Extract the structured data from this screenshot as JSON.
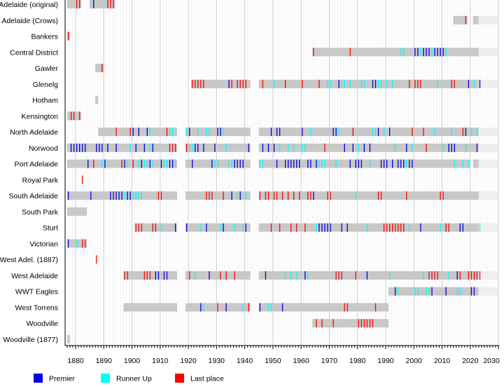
{
  "chart_data": {
    "type": "timeline",
    "xlim": [
      1877,
      2030
    ],
    "x_ticks": [
      1880,
      1890,
      1900,
      1910,
      1920,
      1930,
      1940,
      1950,
      1960,
      1970,
      1980,
      1990,
      2000,
      2010,
      2020,
      2030
    ],
    "grid": "vertical, yearly minor and decade major",
    "legend_placement": "bottom-left",
    "legend": [
      {
        "key": "premier",
        "label": "Premier",
        "color": "#0000e0"
      },
      {
        "key": "runner_up",
        "label": "Runner Up",
        "color": "#00ffff"
      },
      {
        "key": "last",
        "label": "Last place",
        "color": "#ff0000"
      }
    ],
    "colors": {
      "active": "#c8c8c8",
      "ongoing": "#eeeeee"
    },
    "clubs": [
      {
        "name": "Adelaide (original)",
        "spans": [
          [
            1877,
            1881
          ],
          [
            1885,
            1893
          ]
        ],
        "ongoing": [],
        "premier": [
          1886
        ],
        "runner_up": [],
        "last": [
          1880,
          1881,
          1891,
          1892,
          1893
        ]
      },
      {
        "name": "Adelaide (Crows)",
        "spans": [
          [
            2014,
            2018
          ],
          [
            2021,
            2022
          ]
        ],
        "ongoing": [
          2023,
          2029
        ],
        "premier": [],
        "runner_up": [],
        "last": [
          2018
        ]
      },
      {
        "name": "Bankers",
        "spans": [
          [
            1877,
            1877
          ]
        ],
        "ongoing": [],
        "premier": [],
        "runner_up": [],
        "last": [
          1877
        ]
      },
      {
        "name": "Central District",
        "spans": [
          [
            1964,
            2022
          ]
        ],
        "ongoing": [
          2023,
          2029
        ],
        "premier": [
          2000,
          2001,
          2003,
          2004,
          2005,
          2007,
          2008,
          2009,
          2010
        ],
        "runner_up": [
          1995,
          1996,
          2002,
          2006,
          2011
        ],
        "last": [
          1964,
          1977
        ]
      },
      {
        "name": "Gawler",
        "spans": [
          [
            1887,
            1889
          ]
        ],
        "ongoing": [],
        "premier": [],
        "runner_up": [],
        "last": [
          1889
        ]
      },
      {
        "name": "Glenelg",
        "spans": [
          [
            1921,
            1941
          ],
          [
            1945,
            2022
          ]
        ],
        "ongoing": [
          2023,
          2029
        ],
        "premier": [
          1934,
          1973,
          1985,
          1986,
          2019,
          2023
        ],
        "runner_up": [
          1950,
          1969,
          1970,
          1974,
          1975,
          1977,
          1981,
          1982,
          1987,
          1988,
          1990,
          1992,
          2008,
          2021
        ],
        "last": [
          1921,
          1922,
          1923,
          1924,
          1925,
          1935,
          1937,
          1938,
          1939,
          1940,
          1946,
          1954,
          1960,
          1966,
          1998,
          2000,
          2001,
          2002,
          2013,
          2014
        ]
      },
      {
        "name": "Hotham",
        "spans": [
          [
            1887,
            1887
          ]
        ],
        "ongoing": [],
        "premier": [],
        "runner_up": [],
        "last": []
      },
      {
        "name": "Kensington",
        "spans": [
          [
            1877,
            1881
          ]
        ],
        "ongoing": [],
        "premier": [],
        "runner_up": [],
        "last": [
          1878,
          1879,
          1881
        ]
      },
      {
        "name": "North Adelaide",
        "spans": [
          [
            1888,
            1915
          ],
          [
            1919,
            1941
          ],
          [
            1945,
            2022
          ]
        ],
        "ongoing": [
          2023,
          2029
        ],
        "premier": [
          1900,
          1902,
          1905,
          1920,
          1930,
          1931,
          1949,
          1951,
          1952,
          1960,
          1971,
          1972,
          1987,
          1991,
          2018
        ],
        "runner_up": [
          1906,
          1913,
          1914,
          1919,
          1923,
          1926,
          1927,
          1932,
          1963,
          1973,
          1985,
          1986,
          1989,
          2007,
          2013,
          2020,
          2022
        ],
        "last": [
          1894,
          1899,
          1912,
          1978,
          1999,
          2003,
          2017
        ]
      },
      {
        "name": "Norwood",
        "spans": [
          [
            1877,
            1915
          ],
          [
            1919,
            1941
          ],
          [
            1945,
            2022
          ]
        ],
        "ongoing": [
          2023,
          2029
        ],
        "premier": [
          1878,
          1879,
          1880,
          1881,
          1882,
          1883,
          1887,
          1888,
          1889,
          1891,
          1894,
          1901,
          1904,
          1907,
          1922,
          1923,
          1925,
          1929,
          1941,
          1946,
          1948,
          1950,
          1975,
          1978,
          1982,
          1984,
          1997,
          2012,
          2013,
          2014,
          2022
        ],
        "runner_up": [
          1899,
          1906,
          1920,
          1921,
          1933,
          1952,
          1955,
          1957,
          1960,
          1961,
          1980,
          1993,
          1999,
          2010,
          2018
        ],
        "last": [
          1913,
          1914,
          1915,
          1919,
          1968,
          2004
        ]
      },
      {
        "name": "Port Adelaide",
        "spans": [
          [
            1877,
            1915
          ],
          [
            1919,
            1941
          ],
          [
            1945,
            2019
          ],
          [
            2021,
            2022
          ]
        ],
        "ongoing": [
          2023,
          2029
        ],
        "premier": [
          1884,
          1890,
          1897,
          1903,
          1906,
          1910,
          1913,
          1914,
          1921,
          1928,
          1936,
          1937,
          1938,
          1939,
          1951,
          1954,
          1955,
          1956,
          1957,
          1958,
          1959,
          1962,
          1963,
          1965,
          1977,
          1979,
          1980,
          1981,
          1988,
          1989,
          1990,
          1992,
          1994,
          1995,
          1996,
          1998,
          1999
        ],
        "runner_up": [
          1889,
          1898,
          1900,
          1902,
          1904,
          1905,
          1907,
          1911,
          1912,
          1915,
          1929,
          1930,
          1934,
          1935,
          1945,
          1946,
          1966,
          1967,
          1968,
          1972,
          1984,
          1997,
          2014,
          2017,
          2019
        ],
        "last": [
          1886,
          1896,
          1900
        ]
      },
      {
        "name": "Royal Park",
        "spans": [],
        "ongoing": [],
        "premier": [],
        "runner_up": [],
        "last": [
          1882
        ]
      },
      {
        "name": "South Adelaide",
        "spans": [
          [
            1877,
            1915
          ],
          [
            1919,
            1941
          ],
          [
            1945,
            2022
          ]
        ],
        "ongoing": [
          2023,
          2029
        ],
        "premier": [
          1877,
          1885,
          1892,
          1893,
          1894,
          1895,
          1896,
          1898,
          1899,
          1935,
          1938,
          1964
        ],
        "runner_up": [
          1897,
          1900,
          1901,
          1902,
          1903,
          1937,
          1940,
          1979
        ],
        "last": [
          1909,
          1910,
          1926,
          1927,
          1928,
          1932,
          1945,
          1947,
          1948,
          1950,
          1951,
          1953,
          1955,
          1957,
          1959,
          1962,
          1963,
          1969,
          1970,
          1987,
          1988,
          1997,
          2009,
          2010
        ]
      },
      {
        "name": "South Park",
        "spans": [
          [
            1877,
            1883
          ]
        ],
        "ongoing": [],
        "premier": [],
        "runner_up": [],
        "last": []
      },
      {
        "name": "Sturt",
        "spans": [
          [
            1901,
            1915
          ],
          [
            1919,
            1941
          ],
          [
            1945,
            2022
          ]
        ],
        "ongoing": [
          2023,
          2029
        ],
        "premier": [
          1915,
          1919,
          1926,
          1932,
          1940,
          1966,
          1967,
          1968,
          1969,
          1970,
          1974,
          1976,
          2002,
          2016,
          2017
        ],
        "runner_up": [
          1910,
          1924,
          1931,
          1936,
          1939,
          1965,
          1983,
          1998,
          2009,
          2023
        ],
        "last": [
          1901,
          1902,
          1903,
          1907,
          1908,
          1949,
          1952,
          1956,
          1958,
          1961,
          1989,
          1990,
          1991,
          1992,
          1993,
          1994,
          1995,
          1996,
          2011,
          2012
        ]
      },
      {
        "name": "Victorian",
        "spans": [
          [
            1877,
            1883
          ]
        ],
        "ongoing": [],
        "premier": [
          1877
        ],
        "runner_up": [
          1880
        ],
        "last": [
          1882,
          1883
        ]
      },
      {
        "name": "West Adel. (1887)",
        "spans": [],
        "ongoing": [],
        "premier": [],
        "runner_up": [],
        "last": [
          1887
        ]
      },
      {
        "name": "West Adelaide",
        "spans": [
          [
            1897,
            1915
          ],
          [
            1919,
            1941
          ],
          [
            1945,
            2022
          ]
        ],
        "ongoing": [
          2023,
          2029
        ],
        "premier": [
          1908,
          1909,
          1911,
          1912,
          1927,
          1947,
          1961,
          1983,
          2015
        ],
        "runner_up": [
          1922,
          1954,
          1956,
          1958,
          1962,
          1991,
          2003,
          2012
        ],
        "last": [
          1897,
          1898,
          1904,
          1905,
          1906,
          1920,
          1931,
          1933,
          1936,
          1972,
          1973,
          1974,
          1979,
          2005,
          2006,
          2007,
          2008,
          2016,
          2019,
          2020,
          2021,
          2022,
          2023
        ]
      },
      {
        "name": "WWT Eagles",
        "spans": [
          [
            1991,
            2022
          ]
        ],
        "ongoing": [
          2023,
          2029
        ],
        "premier": [
          1993,
          2006,
          2011,
          2020,
          2021
        ],
        "runner_up": [
          1994,
          2000,
          2001,
          2004,
          2005,
          2015,
          2016
        ],
        "last": []
      },
      {
        "name": "West Torrens",
        "spans": [
          [
            1897,
            1915
          ],
          [
            1919,
            1941
          ],
          [
            1945,
            1990
          ]
        ],
        "ongoing": [],
        "premier": [
          1924,
          1933,
          1945,
          1953
        ],
        "runner_up": [
          1925,
          1939,
          1948,
          1949
        ],
        "last": [
          1930,
          1941,
          1975,
          1976,
          1986
        ]
      },
      {
        "name": "Woodville",
        "spans": [
          [
            1964,
            1990
          ]
        ],
        "ongoing": [],
        "premier": [],
        "runner_up": [],
        "last": [
          1965,
          1967,
          1971,
          1980,
          1981,
          1982,
          1983,
          1984,
          1985
        ]
      },
      {
        "name": "Woodville (1877)",
        "spans": [
          [
            1877,
            1877
          ]
        ],
        "ongoing": [],
        "premier": [],
        "runner_up": [],
        "last": []
      }
    ]
  }
}
